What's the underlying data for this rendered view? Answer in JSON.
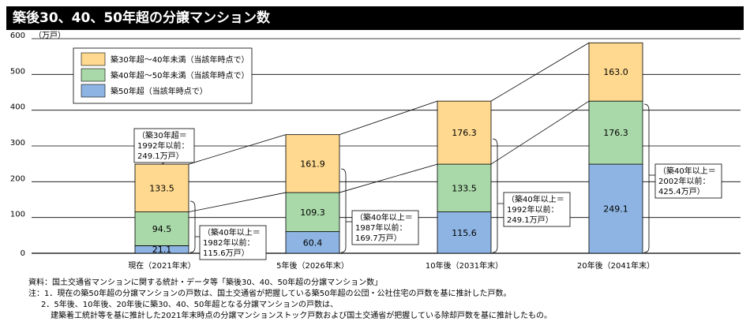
{
  "title": "築後30、40、50年超の分譲マンション数",
  "chart_data": {
    "type": "bar",
    "stacked": true,
    "categories": [
      "現在（2021年末）",
      "5年後（2026年末）",
      "10年後（2031年末）",
      "20年後（2041年末）"
    ],
    "series": [
      {
        "name": "築50年超（当該年時点で）",
        "values": [
          21.1,
          60.4,
          115.6,
          249.1
        ],
        "color": "#8db4e2"
      },
      {
        "name": "築40年超～50年未満（当該年時点で）",
        "values": [
          94.5,
          109.3,
          133.5,
          176.3
        ],
        "color": "#a9d8a9"
      },
      {
        "name": "築30年超～40年未満（当該年時点で）",
        "values": [
          133.5,
          161.9,
          176.3,
          163.0
        ],
        "color": "#ffd98f"
      }
    ],
    "value_labels": [
      [
        "21.1",
        "60.4",
        "115.6",
        "249.1"
      ],
      [
        "94.5",
        "109.3",
        "133.5",
        "176.3"
      ],
      [
        "133.5",
        "161.9",
        "176.3",
        "163.0"
      ]
    ],
    "ylim": [
      0,
      600
    ],
    "yticks": [
      0,
      100,
      200,
      300,
      400,
      500,
      600
    ],
    "ytick_labels": [
      "0",
      "100",
      "200",
      "300",
      "400",
      "500",
      "600"
    ],
    "ylabel": "（万戸）",
    "legend_position": "top-left",
    "gridlines": true,
    "annotations": [
      {
        "lines": [
          "（築30年超＝",
          "1992年以前：",
          "249.1万戸）"
        ]
      },
      {
        "lines": [
          "（築40年以上＝",
          "1982年以前：",
          "115.6万戸）"
        ]
      },
      {
        "lines": [
          "（築40年以上＝",
          "1987年以前：",
          "169.7万戸）"
        ]
      },
      {
        "lines": [
          "（築40年以上＝",
          "1992年以前：",
          "249.1万戸）"
        ]
      },
      {
        "lines": [
          "（築40年以上＝",
          "2002年以前：",
          "425.4万戸）"
        ]
      }
    ]
  },
  "notes": {
    "source": "資料：国土交通省マンションに関する統計・データ等「築後30、40、50年超の分譲マンション数」",
    "note1": "注：1．現在の築50年超の分譲マンションの戸数は、国土交通省が把握している築50年超の公団・公社住宅の戸数を基に推計した戸数。",
    "note2a": "2．5年後、10年後、20年後に築30、40、50年超となる分譲マンションの戸数は、",
    "note2b": "建築着工統計等を基に推計した2021年末時点の分譲マンションストック戸数および国土交通省が把握している除却戸数を基に推計したもの。"
  }
}
